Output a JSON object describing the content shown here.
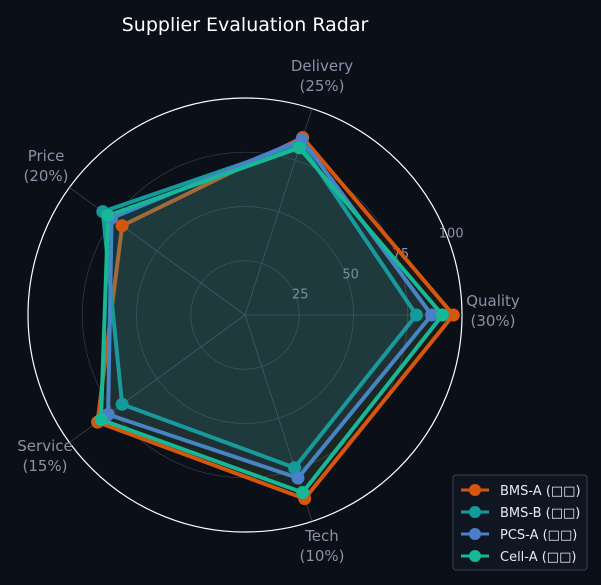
{
  "chart_data": {
    "type": "radar",
    "title": "Supplier Evaluation Radar",
    "axes": [
      {
        "label": "Quality",
        "weight": "(30%)"
      },
      {
        "label": "Delivery",
        "weight": "(25%)"
      },
      {
        "label": "Price",
        "weight": "(20%)"
      },
      {
        "label": "Service",
        "weight": "(15%)"
      },
      {
        "label": "Tech",
        "weight": "(10%)"
      }
    ],
    "rlim": [
      0,
      100
    ],
    "ticks": [
      25,
      50,
      75,
      100
    ],
    "grid": true,
    "legend_position": "bottom-right",
    "series": [
      {
        "name": "BMS-A (□□)",
        "color": "#d4560f",
        "values": [
          96,
          86,
          70,
          84,
          89
        ]
      },
      {
        "name": "BMS-B (□□)",
        "color": "#149a9a",
        "values": [
          79,
          83,
          81,
          70,
          74
        ]
      },
      {
        "name": "PCS-A (□□)",
        "color": "#4b7fc9",
        "values": [
          86,
          85,
          76,
          78,
          79
        ]
      },
      {
        "name": "Cell-A (□□)",
        "color": "#16b896",
        "values": [
          91,
          81,
          78,
          82,
          86
        ]
      }
    ]
  }
}
